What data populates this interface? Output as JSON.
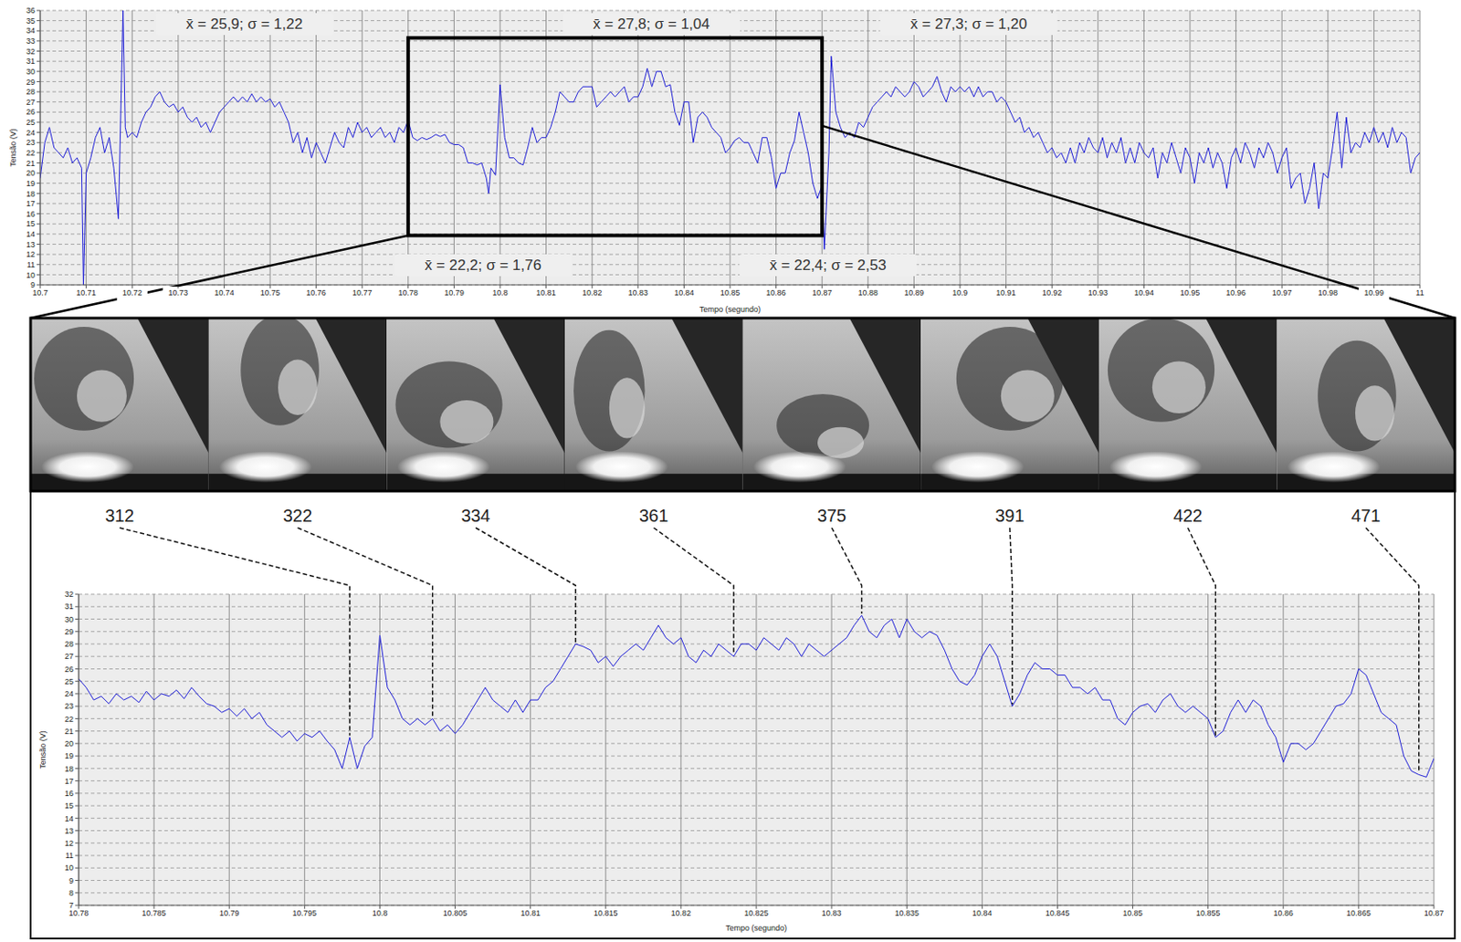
{
  "chart_data": [
    {
      "type": "line",
      "x_label": "Tempo (segundo)",
      "y_label": "Tensão (V)",
      "color": "#1f1fd6",
      "grid": true,
      "xlim": [
        10.7,
        11
      ],
      "xticks": [
        10.7,
        10.71,
        10.72,
        10.73,
        10.74,
        10.75,
        10.76,
        10.77,
        10.78,
        10.79,
        10.8,
        10.81,
        10.82,
        10.83,
        10.84,
        10.85,
        10.86,
        10.87,
        10.88,
        10.89,
        10.9,
        10.91,
        10.92,
        10.93,
        10.94,
        10.95,
        10.96,
        10.97,
        10.98,
        10.99,
        11
      ],
      "ylim": [
        9,
        36
      ],
      "yticks": [
        9,
        10,
        11,
        12,
        13,
        14,
        15,
        16,
        17,
        18,
        19,
        20,
        21,
        22,
        23,
        24,
        25,
        26,
        27,
        28,
        29,
        30,
        31,
        32,
        33,
        34,
        35,
        36
      ],
      "x": [
        10.7,
        10.701,
        10.702,
        10.703,
        10.704,
        10.705,
        10.706,
        10.707,
        10.708,
        10.709,
        10.7094,
        10.71,
        10.711,
        10.712,
        10.713,
        10.714,
        10.715,
        10.716,
        10.717,
        10.718,
        10.7185,
        10.719,
        10.72,
        10.721,
        10.722,
        10.723,
        10.724,
        10.725,
        10.726,
        10.727,
        10.728,
        10.729,
        10.73,
        10.731,
        10.732,
        10.733,
        10.734,
        10.735,
        10.736,
        10.737,
        10.738,
        10.739,
        10.74,
        10.741,
        10.742,
        10.743,
        10.744,
        10.745,
        10.746,
        10.747,
        10.748,
        10.749,
        10.75,
        10.751,
        10.752,
        10.753,
        10.754,
        10.755,
        10.756,
        10.757,
        10.758,
        10.759,
        10.76,
        10.761,
        10.762,
        10.763,
        10.764,
        10.765,
        10.766,
        10.767,
        10.768,
        10.769,
        10.77,
        10.771,
        10.772,
        10.773,
        10.774,
        10.775,
        10.776,
        10.777,
        10.778,
        10.779,
        10.78,
        10.781,
        10.782,
        10.783,
        10.784,
        10.785,
        10.786,
        10.787,
        10.788,
        10.789,
        10.79,
        10.791,
        10.792,
        10.793,
        10.794,
        10.795,
        10.796,
        10.797,
        10.7975,
        10.798,
        10.799,
        10.8,
        10.801,
        10.802,
        10.803,
        10.804,
        10.805,
        10.806,
        10.807,
        10.808,
        10.809,
        10.81,
        10.811,
        10.812,
        10.813,
        10.814,
        10.815,
        10.816,
        10.817,
        10.818,
        10.819,
        10.82,
        10.821,
        10.822,
        10.823,
        10.824,
        10.825,
        10.826,
        10.827,
        10.828,
        10.829,
        10.83,
        10.831,
        10.832,
        10.833,
        10.834,
        10.835,
        10.836,
        10.837,
        10.838,
        10.839,
        10.84,
        10.841,
        10.842,
        10.843,
        10.844,
        10.845,
        10.846,
        10.847,
        10.848,
        10.849,
        10.85,
        10.851,
        10.852,
        10.853,
        10.854,
        10.855,
        10.856,
        10.857,
        10.858,
        10.859,
        10.86,
        10.861,
        10.862,
        10.863,
        10.864,
        10.865,
        10.866,
        10.867,
        10.868,
        10.869,
        10.87,
        10.8705,
        10.8715,
        10.872,
        10.873,
        10.874,
        10.875,
        10.876,
        10.877,
        10.878,
        10.879,
        10.88,
        10.881,
        10.882,
        10.883,
        10.884,
        10.885,
        10.886,
        10.887,
        10.888,
        10.889,
        10.89,
        10.891,
        10.892,
        10.893,
        10.894,
        10.895,
        10.896,
        10.897,
        10.898,
        10.899,
        10.9,
        10.901,
        10.902,
        10.903,
        10.904,
        10.905,
        10.906,
        10.907,
        10.908,
        10.909,
        10.91,
        10.911,
        10.912,
        10.913,
        10.914,
        10.915,
        10.916,
        10.917,
        10.918,
        10.919,
        10.92,
        10.921,
        10.922,
        10.923,
        10.924,
        10.925,
        10.926,
        10.927,
        10.928,
        10.929,
        10.93,
        10.931,
        10.932,
        10.933,
        10.934,
        10.935,
        10.936,
        10.937,
        10.938,
        10.939,
        10.94,
        10.941,
        10.942,
        10.943,
        10.944,
        10.945,
        10.946,
        10.947,
        10.948,
        10.949,
        10.95,
        10.951,
        10.952,
        10.953,
        10.954,
        10.955,
        10.956,
        10.957,
        10.958,
        10.959,
        10.96,
        10.961,
        10.962,
        10.963,
        10.964,
        10.965,
        10.966,
        10.967,
        10.968,
        10.969,
        10.97,
        10.971,
        10.972,
        10.973,
        10.974,
        10.975,
        10.976,
        10.977,
        10.978,
        10.979,
        10.98,
        10.981,
        10.982,
        10.983,
        10.984,
        10.985,
        10.986,
        10.987,
        10.988,
        10.989,
        10.99,
        10.991,
        10.992,
        10.993,
        10.994,
        10.995,
        10.996,
        10.997,
        10.998,
        10.999,
        11
      ],
      "values": [
        19.5,
        23,
        24.5,
        22.5,
        22,
        21.5,
        22.5,
        21,
        21.5,
        20.5,
        9,
        20,
        21.5,
        23.5,
        24.5,
        22,
        23.5,
        20.5,
        15.5,
        36,
        24.5,
        23.5,
        24,
        23.5,
        25,
        26,
        26.5,
        27.5,
        28,
        27,
        26.5,
        26.8,
        26,
        26.5,
        25.5,
        25,
        25.5,
        24.5,
        25,
        24,
        25,
        26,
        26.5,
        27,
        27.5,
        27,
        27.5,
        27,
        27.8,
        27,
        27.5,
        27,
        27.3,
        26.5,
        27,
        26,
        25,
        23,
        24,
        22,
        23.5,
        21.5,
        23,
        22,
        21,
        22.5,
        24,
        23,
        22.5,
        24.5,
        23.5,
        25,
        24,
        24.5,
        23.5,
        24,
        24.5,
        23.5,
        24,
        23,
        24.5,
        24,
        25.2,
        23.5,
        23.2,
        23.5,
        23.3,
        23.5,
        23.8,
        23.6,
        23.8,
        23,
        22.8,
        22.8,
        22.5,
        21,
        21,
        20.8,
        21,
        19.5,
        18,
        20.5,
        19.8,
        28.7,
        23.5,
        21.5,
        21.5,
        21,
        20.8,
        22.5,
        24.5,
        23,
        23.5,
        23.5,
        24.5,
        26,
        28,
        27.5,
        27,
        27,
        28,
        28.5,
        28.5,
        28.5,
        26.5,
        27,
        27.5,
        28,
        27.5,
        28,
        28.5,
        27,
        27.5,
        27.5,
        28.5,
        30.3,
        28.5,
        30,
        30,
        28.5,
        28.7,
        26,
        24.7,
        27,
        27,
        23,
        25.5,
        26,
        25.5,
        24.5,
        24,
        23.5,
        22,
        22.5,
        23.2,
        23.5,
        23,
        23,
        22,
        21,
        23.5,
        23.5,
        21.5,
        18.5,
        20,
        20,
        22,
        23.2,
        26,
        24,
        22,
        19,
        17.5,
        18.8,
        12.5,
        22,
        31.5,
        26,
        24.5,
        23.5,
        24,
        23.5,
        25,
        24.5,
        25.5,
        26.5,
        27,
        27.5,
        28,
        27.5,
        28.5,
        28,
        27.5,
        28,
        29,
        28.5,
        27.5,
        28,
        28.5,
        29.5,
        28,
        27,
        28.5,
        28,
        28.5,
        28,
        28.5,
        27.5,
        28.5,
        27.5,
        28,
        28,
        27,
        27.5,
        27,
        26,
        25,
        25.5,
        24,
        24.5,
        23.5,
        24,
        23,
        22,
        22.5,
        21.5,
        22,
        21,
        22.5,
        21,
        23,
        22,
        23.5,
        22.5,
        22,
        23.5,
        21.5,
        23,
        22,
        23.5,
        21,
        22.5,
        21,
        23,
        22,
        21.5,
        22.5,
        19.5,
        22,
        21,
        23,
        21.5,
        20,
        22.5,
        21.5,
        19,
        22,
        21,
        22.5,
        20.5,
        22,
        21,
        18.5,
        21.5,
        22.5,
        21,
        23,
        22,
        20.5,
        22.5,
        21.5,
        23,
        22,
        20,
        21.5,
        22.5,
        18.5,
        19.5,
        20,
        17,
        18.5,
        21,
        16.5,
        20,
        19.5,
        22.5,
        26,
        20.5,
        25.5,
        22,
        23,
        22.5,
        24,
        23,
        24.5,
        23,
        24,
        22.5,
        24.5,
        23,
        24,
        23.5,
        20,
        21.5,
        22
      ],
      "annotations": [
        "x̄ = 25,9; σ = 1,22",
        "x̄ = 22,2; σ = 1,76",
        "x̄ = 27,8; σ = 1,04",
        "x̄ = 22,4; σ = 2,53",
        "x̄ = 27,3; σ = 1,20"
      ]
    },
    {
      "type": "line",
      "x_label": "Tempo (segundo)",
      "y_label": "Tensão (V)",
      "color": "#1f1fd6",
      "grid": true,
      "xlim": [
        10.78,
        10.87
      ],
      "xticks": [
        10.78,
        10.785,
        10.79,
        10.795,
        10.8,
        10.805,
        10.81,
        10.815,
        10.82,
        10.825,
        10.83,
        10.835,
        10.84,
        10.845,
        10.85,
        10.855,
        10.86,
        10.865,
        10.87
      ],
      "ylim": [
        7,
        32
      ],
      "yticks": [
        7,
        8,
        9,
        10,
        11,
        12,
        13,
        14,
        15,
        16,
        17,
        18,
        19,
        20,
        21,
        22,
        23,
        24,
        25,
        26,
        27,
        28,
        29,
        30,
        31,
        32
      ],
      "x": [
        10.78,
        10.7805,
        10.781,
        10.7815,
        10.782,
        10.7825,
        10.783,
        10.7835,
        10.784,
        10.7845,
        10.785,
        10.7855,
        10.786,
        10.7865,
        10.787,
        10.7875,
        10.788,
        10.7885,
        10.789,
        10.7895,
        10.79,
        10.7905,
        10.791,
        10.7915,
        10.792,
        10.7925,
        10.793,
        10.7935,
        10.794,
        10.7945,
        10.795,
        10.7955,
        10.796,
        10.7965,
        10.797,
        10.7975,
        10.798,
        10.7985,
        10.799,
        10.7995,
        10.8,
        10.8005,
        10.801,
        10.8015,
        10.802,
        10.8025,
        10.803,
        10.8035,
        10.804,
        10.8045,
        10.805,
        10.8055,
        10.806,
        10.8065,
        10.807,
        10.8075,
        10.808,
        10.8085,
        10.809,
        10.8095,
        10.81,
        10.8105,
        10.811,
        10.8115,
        10.812,
        10.8125,
        10.813,
        10.8135,
        10.814,
        10.8145,
        10.815,
        10.8155,
        10.816,
        10.8165,
        10.817,
        10.8175,
        10.818,
        10.8185,
        10.819,
        10.8195,
        10.82,
        10.8205,
        10.821,
        10.8215,
        10.822,
        10.8225,
        10.823,
        10.8235,
        10.824,
        10.8245,
        10.825,
        10.8255,
        10.826,
        10.8265,
        10.827,
        10.8275,
        10.828,
        10.8285,
        10.829,
        10.8295,
        10.83,
        10.8305,
        10.831,
        10.8315,
        10.832,
        10.8325,
        10.833,
        10.8335,
        10.834,
        10.8345,
        10.835,
        10.8355,
        10.836,
        10.8365,
        10.837,
        10.8375,
        10.838,
        10.8385,
        10.839,
        10.8395,
        10.84,
        10.8405,
        10.841,
        10.8415,
        10.842,
        10.8425,
        10.843,
        10.8435,
        10.844,
        10.8445,
        10.845,
        10.8455,
        10.846,
        10.8465,
        10.847,
        10.8475,
        10.848,
        10.8485,
        10.849,
        10.8495,
        10.85,
        10.8505,
        10.851,
        10.8515,
        10.852,
        10.8525,
        10.853,
        10.8535,
        10.854,
        10.8545,
        10.855,
        10.8555,
        10.856,
        10.8565,
        10.857,
        10.8575,
        10.858,
        10.8585,
        10.859,
        10.8595,
        10.86,
        10.8605,
        10.861,
        10.8615,
        10.862,
        10.8625,
        10.863,
        10.8635,
        10.864,
        10.8645,
        10.865,
        10.8655,
        10.866,
        10.8665,
        10.867,
        10.8675,
        10.868,
        10.8685,
        10.869,
        10.8695,
        10.87
      ],
      "values": [
        25.2,
        24.5,
        23.5,
        23.8,
        23.2,
        24,
        23.5,
        23.8,
        23.3,
        24.2,
        23.5,
        24,
        23.8,
        24.3,
        23.6,
        24.5,
        23.8,
        23.2,
        23,
        22.5,
        22.8,
        22.2,
        22.8,
        22,
        22.5,
        21.5,
        21,
        20.5,
        21,
        20.2,
        20.8,
        20.5,
        21,
        20.2,
        19.5,
        18,
        20.5,
        18,
        19.8,
        20.5,
        28.7,
        24.5,
        23.5,
        22,
        21.5,
        22,
        21.5,
        22,
        21,
        21.5,
        20.8,
        21.5,
        22.5,
        23.5,
        24.5,
        23.5,
        23,
        22.5,
        23.5,
        22.5,
        23.5,
        23.5,
        24.5,
        25,
        26,
        27,
        28,
        27.8,
        27.5,
        26.5,
        27,
        26.2,
        27,
        27.5,
        28,
        27.5,
        28.5,
        29.5,
        28.5,
        28,
        28.5,
        27,
        26.5,
        27.5,
        27,
        28,
        27.5,
        27,
        28,
        28,
        27.5,
        28.5,
        28,
        27.5,
        28.5,
        28,
        27,
        28,
        27.5,
        27,
        27.5,
        28,
        28.5,
        29.5,
        30.3,
        29,
        28.5,
        29.5,
        30,
        28.5,
        30,
        29,
        28.5,
        29,
        28.7,
        27.5,
        26,
        25,
        24.7,
        25.5,
        27,
        28,
        27,
        25,
        23,
        24,
        25.5,
        26.5,
        26,
        26,
        25.5,
        25.5,
        24.5,
        24.5,
        24,
        24.5,
        23.5,
        23.5,
        22,
        21.5,
        22.5,
        23,
        23.2,
        22.5,
        23.5,
        24,
        23,
        22.5,
        23,
        22.5,
        22,
        20.5,
        21,
        22.5,
        23.5,
        22.5,
        23.5,
        23,
        21.5,
        20.5,
        18.5,
        20,
        20,
        19.5,
        20,
        21,
        22,
        23,
        23.2,
        24,
        26,
        25.5,
        24,
        22.5,
        22,
        21.5,
        19,
        17.8,
        17.5,
        17.3,
        18.8
      ],
      "annotations": [
        {
          "text": "312",
          "x": 10.798
        },
        {
          "text": "322",
          "x": 10.8035
        },
        {
          "text": "334",
          "x": 10.813
        },
        {
          "text": "361",
          "x": 10.8235
        },
        {
          "text": "375",
          "x": 10.832
        },
        {
          "text": "391",
          "x": 10.842
        },
        {
          "text": "422",
          "x": 10.8555
        },
        {
          "text": "471",
          "x": 10.869
        }
      ]
    }
  ]
}
